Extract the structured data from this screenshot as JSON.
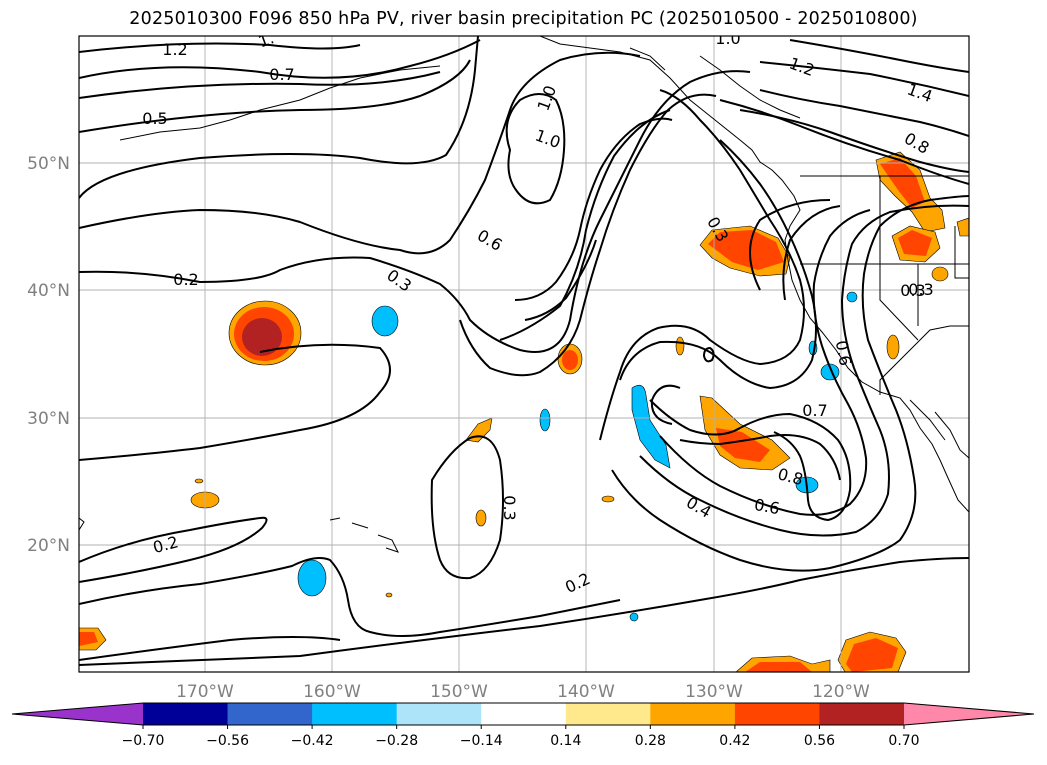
{
  "title": "2025010300 F096 850 hPa PV, river basin precipitation PC (2025010500 - 2025010800)",
  "map": {
    "lat_labels": [
      "50°N",
      "40°N",
      "30°N",
      "20°N"
    ],
    "lon_labels": [
      "170°W",
      "160°W",
      "150°W",
      "140°W",
      "130°W",
      "120°W"
    ],
    "contour_labels": [
      "1.2",
      "1.",
      "0.7",
      "0.5",
      "1.0",
      "1.0",
      "0.6",
      "0.3",
      "0.2",
      "0.3",
      "0.2",
      "0.2",
      "0.3",
      "0.4",
      "0.6",
      "0.7",
      "0.8",
      "0.3",
      "1.2",
      "1.4",
      "0.8",
      "1.0",
      "0.6",
      "0.3"
    ],
    "colors": {
      "contour": "#000000",
      "grid": "#b0b0b0",
      "coast": "#000000"
    }
  },
  "colorbar": {
    "ticks": [
      "−0.70",
      "−0.56",
      "−0.42",
      "−0.28",
      "−0.14",
      "0.14",
      "0.28",
      "0.42",
      "0.56",
      "0.70"
    ],
    "colors": [
      "#9933cc",
      "#000099",
      "#3366cc",
      "#00bfff",
      "#ade4fa",
      "#ffffff",
      "#ffe98c",
      "#ffa500",
      "#ff4500",
      "#b22222",
      "#ff88aa"
    ]
  }
}
